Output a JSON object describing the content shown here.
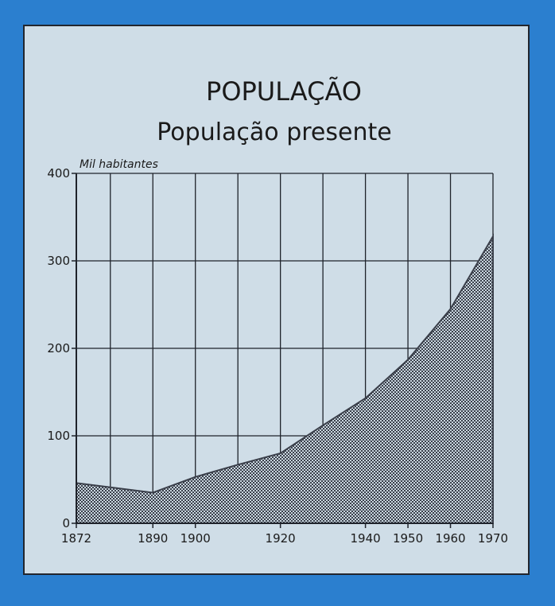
{
  "chart_data": {
    "type": "area",
    "title": "POPULAÇÃO",
    "subtitle": "População presente",
    "y_axis_label": "Mil habitantes",
    "x": [
      1872,
      1890,
      1900,
      1910,
      1920,
      1930,
      1940,
      1950,
      1960,
      1970
    ],
    "values": [
      46,
      35,
      53,
      67,
      80,
      112,
      143,
      187,
      245,
      328
    ],
    "color": "#3a3f4a",
    "xlim": [
      1872,
      1970
    ],
    "xticks": [
      1872,
      1890,
      1900,
      1920,
      1940,
      1950,
      1960,
      1970
    ],
    "xgrid": [
      1880,
      1890,
      1900,
      1910,
      1920,
      1930,
      1940,
      1950,
      1960,
      1970
    ],
    "ylim": [
      0,
      400
    ],
    "yticks": [
      0,
      100,
      200,
      300,
      400
    ],
    "grid": true
  }
}
